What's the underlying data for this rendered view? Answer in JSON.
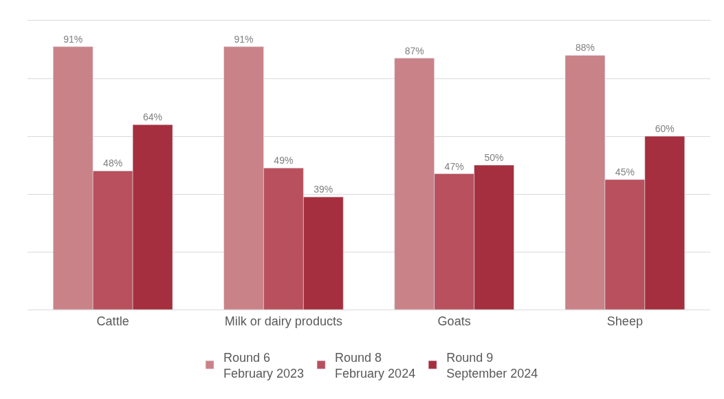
{
  "chart_data": {
    "type": "bar",
    "categories": [
      "Cattle",
      "Milk or dairy products",
      "Goats",
      "Sheep"
    ],
    "series": [
      {
        "name": "Round 6\nFebruary 2023",
        "color": "#c98288",
        "values": [
          91,
          91,
          87,
          88
        ],
        "value_labels": [
          "91%",
          "91%",
          "87%",
          "88%"
        ]
      },
      {
        "name": "Round 8\nFebruary 2024",
        "color": "#b9505d",
        "values": [
          48,
          49,
          47,
          45
        ],
        "value_labels": [
          "48%",
          "49%",
          "47%",
          "45%"
        ]
      },
      {
        "name": "Round 9\nSeptember 2024",
        "color": "#a52f3e",
        "values": [
          64,
          39,
          50,
          60
        ],
        "value_labels": [
          "64%",
          "39%",
          "50%",
          "60%"
        ]
      }
    ],
    "ylim": [
      0,
      100
    ],
    "yticks": [
      {
        "value": 0,
        "label": null
      },
      {
        "value": 20,
        "label": null
      },
      {
        "value": 40,
        "label": null
      },
      {
        "value": 60,
        "label": null
      },
      {
        "value": 80,
        "label": null
      },
      {
        "value": 100,
        "label": null
      }
    ],
    "grid": "y",
    "legend": "bottom",
    "tick_labels": "x"
  }
}
